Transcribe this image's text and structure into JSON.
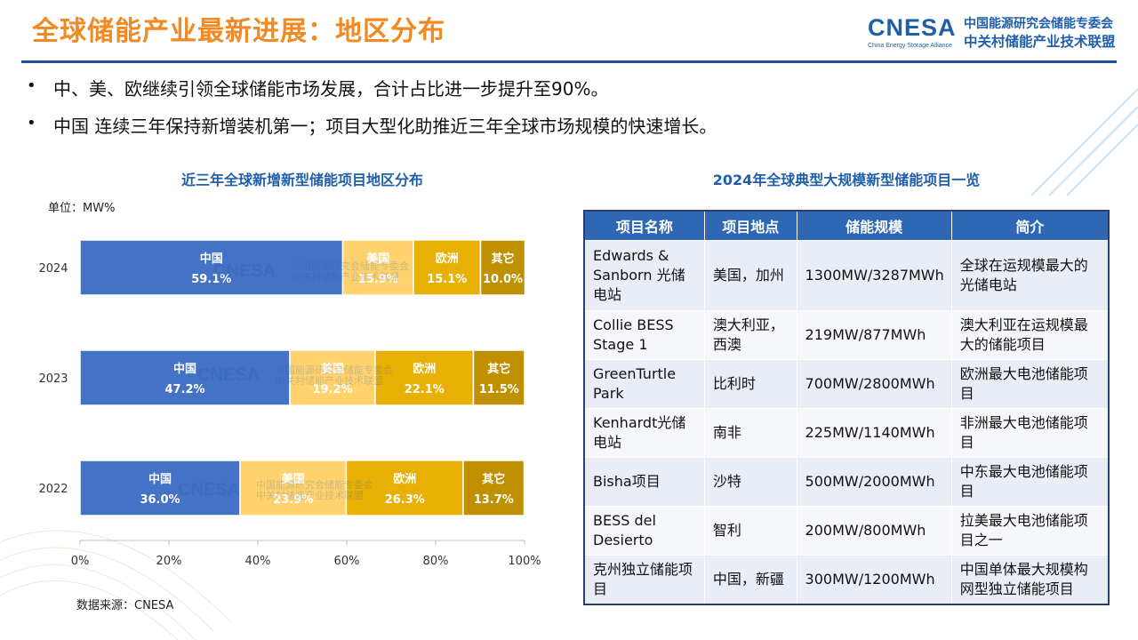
{
  "header": {
    "title": "全球储能产业最新进展：地区分布",
    "logo_mark": "CNESA",
    "logo_sub": "China Energy Storage Alliance",
    "logo_cn1": "中国能源研究会储能专委会",
    "logo_cn2": "中关村储能产业技术联盟"
  },
  "bullets": [
    "中、美、欧继续引领全球储能市场发展，合计占比进一步提升至90%。",
    "中国 连续三年保持新增装机第一；项目大型化助推近三年全球市场规模的快速增长。"
  ],
  "bullet_symbol": "•",
  "chart_data": {
    "type": "bar",
    "orientation": "horizontal",
    "stacked": true,
    "title": "近三年全球新增新型储能项目地区分布",
    "unit_label": "单位：MW%",
    "source": "数据来源：CNESA",
    "categories": [
      "2024",
      "2023",
      "2022"
    ],
    "series": [
      {
        "name": "中国",
        "values": [
          59.1,
          47.2,
          36.0
        ],
        "labels": [
          "59.1%",
          "47.2%",
          "36.0%"
        ],
        "color": "#4472C4"
      },
      {
        "name": "美国",
        "values": [
          15.9,
          19.2,
          23.9
        ],
        "labels": [
          "15.9%",
          "19.2%",
          "23.9%"
        ],
        "color": "#FFD26E"
      },
      {
        "name": "欧洲",
        "values": [
          15.1,
          22.1,
          26.3
        ],
        "labels": [
          "15.1%",
          "22.1%",
          "26.3%"
        ],
        "color": "#E8B004"
      },
      {
        "name": "其它",
        "values": [
          10.0,
          11.5,
          13.7
        ],
        "labels": [
          "10.0%",
          "11.5%",
          "13.7%"
        ],
        "color": "#BF9000"
      }
    ],
    "xlim": [
      0,
      100
    ],
    "xticks": [
      "0%",
      "20%",
      "40%",
      "60%",
      "80%",
      "100%"
    ],
    "grid": false,
    "legend": "none"
  },
  "table": {
    "title": "2024年全球典型大规模新型储能项目一览",
    "header_color": "#2E67B4",
    "columns": [
      "项目名称",
      "项目地点",
      "储能规模",
      "简介"
    ],
    "rows": [
      [
        "Edwards & Sanborn 光储电站",
        "美国，加州",
        "1300MW/3287MWh",
        "全球在运规模最大的光储电站"
      ],
      [
        "Collie BESS Stage 1",
        "澳大利亚，西澳",
        "219MW/877MWh",
        "澳大利亚在运规模最大的储能项目"
      ],
      [
        "GreenTurtle Park",
        "比利时",
        "700MW/2800MWh",
        "欧洲最大电池储能项目"
      ],
      [
        "Kenhardt光储电站",
        "南非",
        "225MW/1140MWh",
        "非洲最大电池储能项目"
      ],
      [
        "Bisha项目",
        "沙特",
        "500MW/2000MWh",
        "中东最大电池储能项目"
      ],
      [
        "BESS del Desierto",
        "智利",
        "200MW/800MWh",
        "拉美最大电池储能项目之一"
      ],
      [
        "克州独立储能项目",
        "中国，新疆",
        "300MW/1200MWh",
        "中国单体最大规模构网型独立储能项目"
      ]
    ]
  }
}
